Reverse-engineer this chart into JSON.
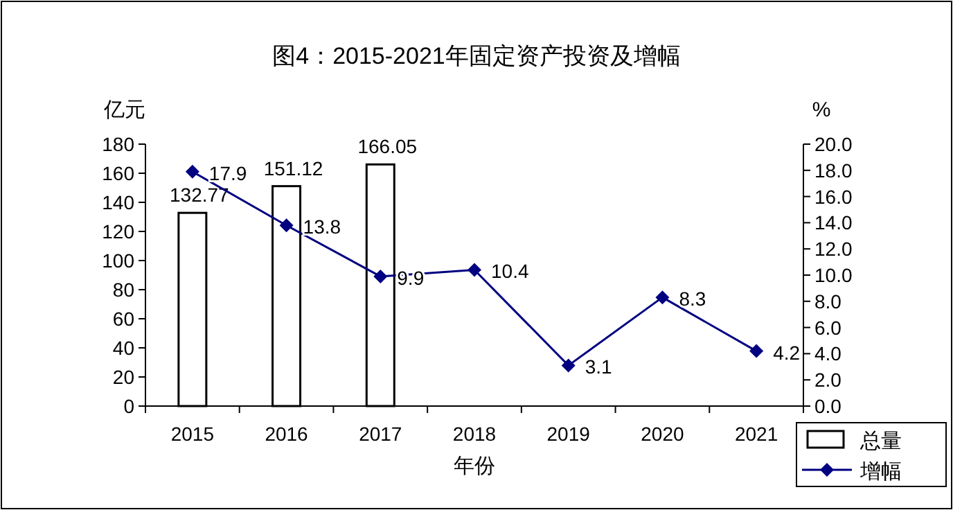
{
  "chart_data": {
    "type": "bar",
    "title": "图4：2015-2021年固定资产投资及增幅",
    "xlabel": "年份",
    "ylabel": "亿元",
    "y2label": "%",
    "categories": [
      "2015",
      "2016",
      "2017",
      "2018",
      "2019",
      "2020",
      "2021"
    ],
    "series": [
      {
        "name": "总量",
        "color": "#ffffff",
        "values": [
          132.77,
          151.12,
          166.05,
          null,
          null,
          null,
          null
        ]
      },
      {
        "name": "增幅",
        "type": "line",
        "axis": "y2",
        "marker": "diamond",
        "color": "#000080",
        "values": [
          17.9,
          13.8,
          9.9,
          10.4,
          3.1,
          8.3,
          4.2
        ]
      }
    ],
    "ylim": [
      0,
      180
    ],
    "yticks": [
      0,
      20,
      40,
      60,
      80,
      100,
      120,
      140,
      160,
      180
    ],
    "y2lim": [
      0,
      20
    ],
    "y2ticks": [
      {
        "value": 0,
        "label": "0.0"
      },
      {
        "value": 2,
        "label": "2.0"
      },
      {
        "value": 4,
        "label": "4.0"
      },
      {
        "value": 6,
        "label": "6.0"
      },
      {
        "value": 8,
        "label": "8.0"
      },
      {
        "value": 10,
        "label": "10.0"
      },
      {
        "value": 12,
        "label": "12.0"
      },
      {
        "value": 14,
        "label": "14.0"
      },
      {
        "value": 16,
        "label": "16.0"
      },
      {
        "value": 18,
        "label": "18.0"
      },
      {
        "value": 20,
        "label": "20.0"
      }
    ],
    "data_labels": true,
    "legend": "bottom right"
  }
}
